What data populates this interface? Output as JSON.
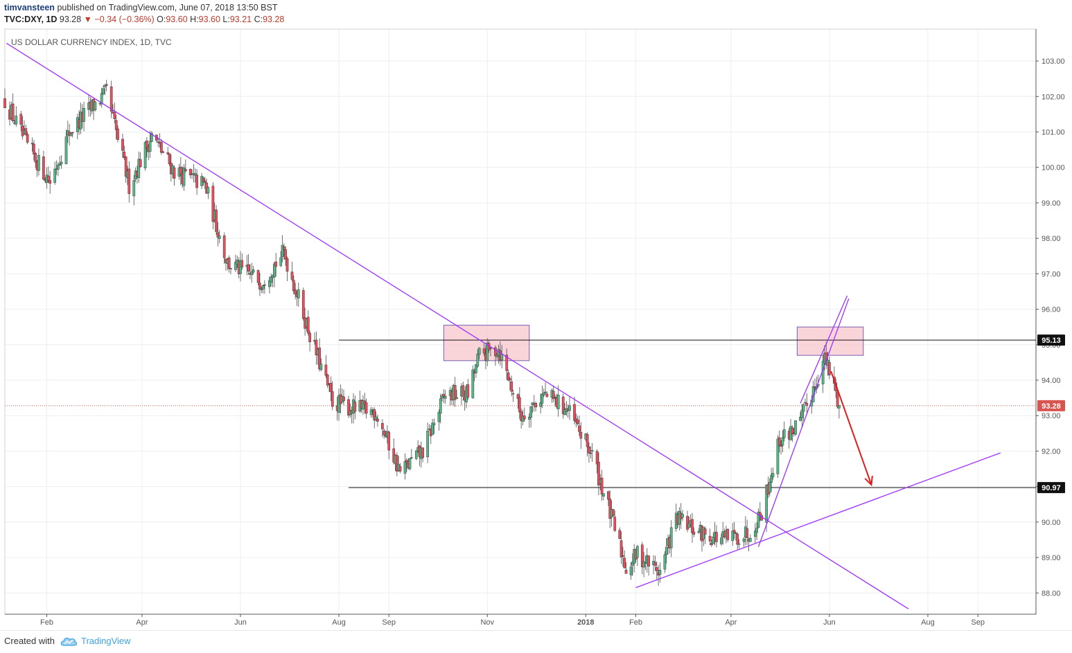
{
  "header": {
    "user": "timvansteen",
    "published": "published on TradingView.com, June 07, 2018 13:50 BST",
    "symbol": "TVC:DXY, 1D",
    "last": "93.28",
    "change": "▼ −0.34 (−0.36%)",
    "o_label": "O:",
    "o": "93.60",
    "h_label": "H:",
    "h": "93.60",
    "l_label": "L:",
    "l": "93.21",
    "c_label": "C:",
    "c": "93.28"
  },
  "footer": {
    "created_with": "Created with",
    "brand": "TradingView"
  },
  "colors": {
    "up": "#53b987",
    "down": "#eb4d5c",
    "trendline": "#9b30ff",
    "zone": "#f7c6cc",
    "arrow": "#e01b1b",
    "last_price": "#d9534f"
  },
  "chart_data": {
    "type": "candlestick",
    "title": "US DOLLAR CURRENCY INDEX, 1D, TVC",
    "xlabel": "",
    "ylabel": "",
    "ylim": [
      87.4,
      103.9
    ],
    "y_ticks": [
      "88.00",
      "89.00",
      "90.00",
      "91.00",
      "92.00",
      "93.00",
      "94.00",
      "95.00",
      "96.00",
      "97.00",
      "98.00",
      "99.00",
      "100.00",
      "101.00",
      "102.00",
      "103.00"
    ],
    "x_ticks": [
      {
        "label": "Feb",
        "date": "2017-02-01"
      },
      {
        "label": "Apr",
        "date": "2017-04-01"
      },
      {
        "label": "Jun",
        "date": "2017-06-01"
      },
      {
        "label": "Aug",
        "date": "2017-08-01"
      },
      {
        "label": "Sep",
        "date": "2017-09-01"
      },
      {
        "label": "Nov",
        "date": "2017-11-01"
      },
      {
        "label": "2018",
        "date": "2018-01-01"
      },
      {
        "label": "Feb",
        "date": "2018-02-01"
      },
      {
        "label": "Apr",
        "date": "2018-04-01"
      },
      {
        "label": "Jun",
        "date": "2018-06-01"
      },
      {
        "label": "Aug",
        "date": "2018-08-01"
      },
      {
        "label": "Sep",
        "date": "2018-09-01"
      }
    ],
    "x_range": [
      "2017-01-06",
      "2018-10-07"
    ],
    "grid": true,
    "price_path": [
      [
        "2017-01-06",
        101.9
      ],
      [
        "2017-01-20",
        100.6
      ],
      [
        "2017-02-03",
        99.6
      ],
      [
        "2017-02-15",
        101.0
      ],
      [
        "2017-03-01",
        101.7
      ],
      [
        "2017-03-10",
        102.1
      ],
      [
        "2017-03-24",
        99.5
      ],
      [
        "2017-04-07",
        100.9
      ],
      [
        "2017-04-21",
        99.9
      ],
      [
        "2017-05-10",
        99.5
      ],
      [
        "2017-05-24",
        97.3
      ],
      [
        "2017-06-14",
        96.8
      ],
      [
        "2017-06-28",
        97.6
      ],
      [
        "2017-07-14",
        95.3
      ],
      [
        "2017-07-28",
        93.4
      ],
      [
        "2017-08-10",
        93.2
      ],
      [
        "2017-08-24",
        93.1
      ],
      [
        "2017-09-08",
        91.4
      ],
      [
        "2017-09-22",
        92.0
      ],
      [
        "2017-10-06",
        93.6
      ],
      [
        "2017-10-20",
        93.6
      ],
      [
        "2017-10-27",
        94.7
      ],
      [
        "2017-11-08",
        94.9
      ],
      [
        "2017-11-22",
        93.0
      ],
      [
        "2017-12-06",
        93.6
      ],
      [
        "2017-12-20",
        93.2
      ],
      [
        "2018-01-05",
        91.9
      ],
      [
        "2018-01-15",
        90.4
      ],
      [
        "2018-01-26",
        88.7
      ],
      [
        "2018-02-02",
        89.1
      ],
      [
        "2018-02-16",
        88.6
      ],
      [
        "2018-02-26",
        90.1
      ],
      [
        "2018-03-12",
        89.7
      ],
      [
        "2018-03-28",
        89.5
      ],
      [
        "2018-04-12",
        89.7
      ],
      [
        "2018-04-20",
        90.3
      ],
      [
        "2018-05-01",
        92.3
      ],
      [
        "2018-05-14",
        92.8
      ],
      [
        "2018-05-23",
        93.9
      ],
      [
        "2018-05-29",
        94.6
      ],
      [
        "2018-06-04",
        93.8
      ],
      [
        "2018-06-07",
        93.28
      ]
    ],
    "horizontal_levels": [
      {
        "value": 95.13,
        "label": "95.13",
        "from": "2017-08-01"
      },
      {
        "value": 90.97,
        "label": "90.97",
        "from": "2017-08-07"
      }
    ],
    "last_price": {
      "value": 93.28,
      "label": "93.28"
    },
    "zones": [
      {
        "from": "2017-10-05",
        "to": "2017-11-27",
        "low": 94.55,
        "high": 95.55
      },
      {
        "from": "2018-05-12",
        "to": "2018-06-22",
        "low": 94.7,
        "high": 95.5
      }
    ],
    "trendlines": [
      {
        "from": [
          "2017-01-07",
          103.5
        ],
        "to": [
          "2018-07-20",
          87.55
        ]
      },
      {
        "from": [
          "2018-02-01",
          88.15
        ],
        "to": [
          "2018-09-15",
          91.95
        ]
      },
      {
        "from": [
          "2018-04-18",
          89.3
        ],
        "to": [
          "2018-06-13",
          96.3
        ]
      },
      {
        "from": [
          "2018-05-14",
          93.35
        ],
        "to": [
          "2018-06-12",
          96.38
        ]
      }
    ],
    "projection_arrow": {
      "from": [
        "2018-06-02",
        94.25
      ],
      "to": [
        "2018-06-27",
        91.05
      ]
    }
  }
}
